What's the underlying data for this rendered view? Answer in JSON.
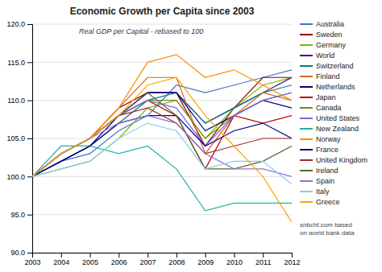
{
  "chart_data": {
    "type": "line",
    "title": "Economic Growth per Capita since 2003",
    "subtitle": "Real GDP per Capital - rebased to 100",
    "footnote": "snbchf.com based\non world bank data",
    "x": [
      2003,
      2004,
      2005,
      2006,
      2007,
      2008,
      2009,
      2010,
      2011,
      2012
    ],
    "xlim": [
      2003,
      2012
    ],
    "xticks": [
      2003,
      2004,
      2005,
      2006,
      2007,
      2008,
      2009,
      2010,
      2011,
      2012
    ],
    "ylim": [
      90.0,
      120.0
    ],
    "yticks": [
      {
        "value": 90,
        "label": "90.0"
      },
      {
        "value": 95,
        "label": "95.0"
      },
      {
        "value": 100,
        "label": "100.0"
      },
      {
        "value": 105,
        "label": "105.0"
      },
      {
        "value": 110,
        "label": "110.0"
      },
      {
        "value": 115,
        "label": "115.0"
      },
      {
        "value": 120,
        "label": "120.0"
      }
    ],
    "grid": true,
    "legend": "right",
    "series": [
      {
        "name": "Australia",
        "color": "#4472C4",
        "values": [
          100,
          102,
          103,
          106,
          108,
          112,
          111,
          112,
          113,
          114
        ]
      },
      {
        "name": "Sweden",
        "color": "#8B0000",
        "values": [
          100,
          103,
          105,
          109,
          111,
          111,
          104,
          109,
          113,
          113
        ]
      },
      {
        "name": "Germany",
        "color": "#7CBB00",
        "values": [
          100,
          101,
          102,
          105,
          109,
          110,
          105,
          109,
          112,
          113
        ]
      },
      {
        "name": "World",
        "color": "#4B0082",
        "values": [
          100,
          103,
          105,
          108,
          111,
          111,
          107,
          109,
          111,
          113
        ]
      },
      {
        "name": "Switzerland",
        "color": "#008080",
        "values": [
          100,
          102,
          104,
          107,
          110,
          111,
          107,
          109,
          111,
          112
        ]
      },
      {
        "name": "Finland",
        "color": "#D2691E",
        "values": [
          100,
          103,
          105,
          109,
          113,
          113,
          103,
          108,
          111,
          110
        ]
      },
      {
        "name": "Netherlands",
        "color": "#000080",
        "values": [
          100,
          102,
          104,
          108,
          111,
          111,
          106,
          108,
          110,
          109
        ]
      },
      {
        "name": "Japan",
        "color": "#C00000",
        "values": [
          100,
          103,
          105,
          108,
          110,
          108,
          101,
          108,
          107,
          108
        ]
      },
      {
        "name": "Canada",
        "color": "#6B8E23",
        "values": [
          100,
          103,
          105,
          108,
          110,
          110,
          105,
          108,
          110,
          111
        ]
      },
      {
        "name": "United States",
        "color": "#7B68EE",
        "values": [
          100,
          103,
          105,
          108,
          110,
          109,
          104,
          108,
          110,
          111
        ]
      },
      {
        "name": "New Zealand",
        "color": "#20B2AA",
        "values": [
          100,
          104,
          104,
          103,
          104,
          101,
          95.5,
          96.5,
          96.5,
          96.5
        ]
      },
      {
        "name": "Norway",
        "color": "#FF8C00",
        "values": [
          100,
          103,
          105,
          109,
          115,
          116,
          113,
          114,
          112,
          110
        ]
      },
      {
        "name": "France",
        "color": "#00008B",
        "values": [
          100,
          102,
          104,
          107,
          108,
          108,
          104,
          106,
          107,
          105
        ]
      },
      {
        "name": "United Kingdom",
        "color": "#A52A2A",
        "values": [
          100,
          103,
          105,
          108,
          109,
          107,
          103,
          104,
          105,
          105
        ]
      },
      {
        "name": "Ireland",
        "color": "#556B2F",
        "values": [
          100,
          103,
          105,
          108,
          111,
          108,
          101,
          101,
          102,
          104
        ]
      },
      {
        "name": "Spain",
        "color": "#9370DB",
        "values": [
          100,
          103,
          105,
          107,
          108,
          107,
          103,
          101,
          101,
          100
        ]
      },
      {
        "name": "Italy",
        "color": "#87CEEB",
        "values": [
          100,
          101,
          102,
          105,
          107,
          106,
          101,
          102,
          102,
          99
        ]
      },
      {
        "name": "Greece",
        "color": "#FFA500",
        "values": [
          100,
          103,
          105,
          108,
          112,
          113,
          108,
          104,
          100,
          94
        ]
      }
    ]
  }
}
